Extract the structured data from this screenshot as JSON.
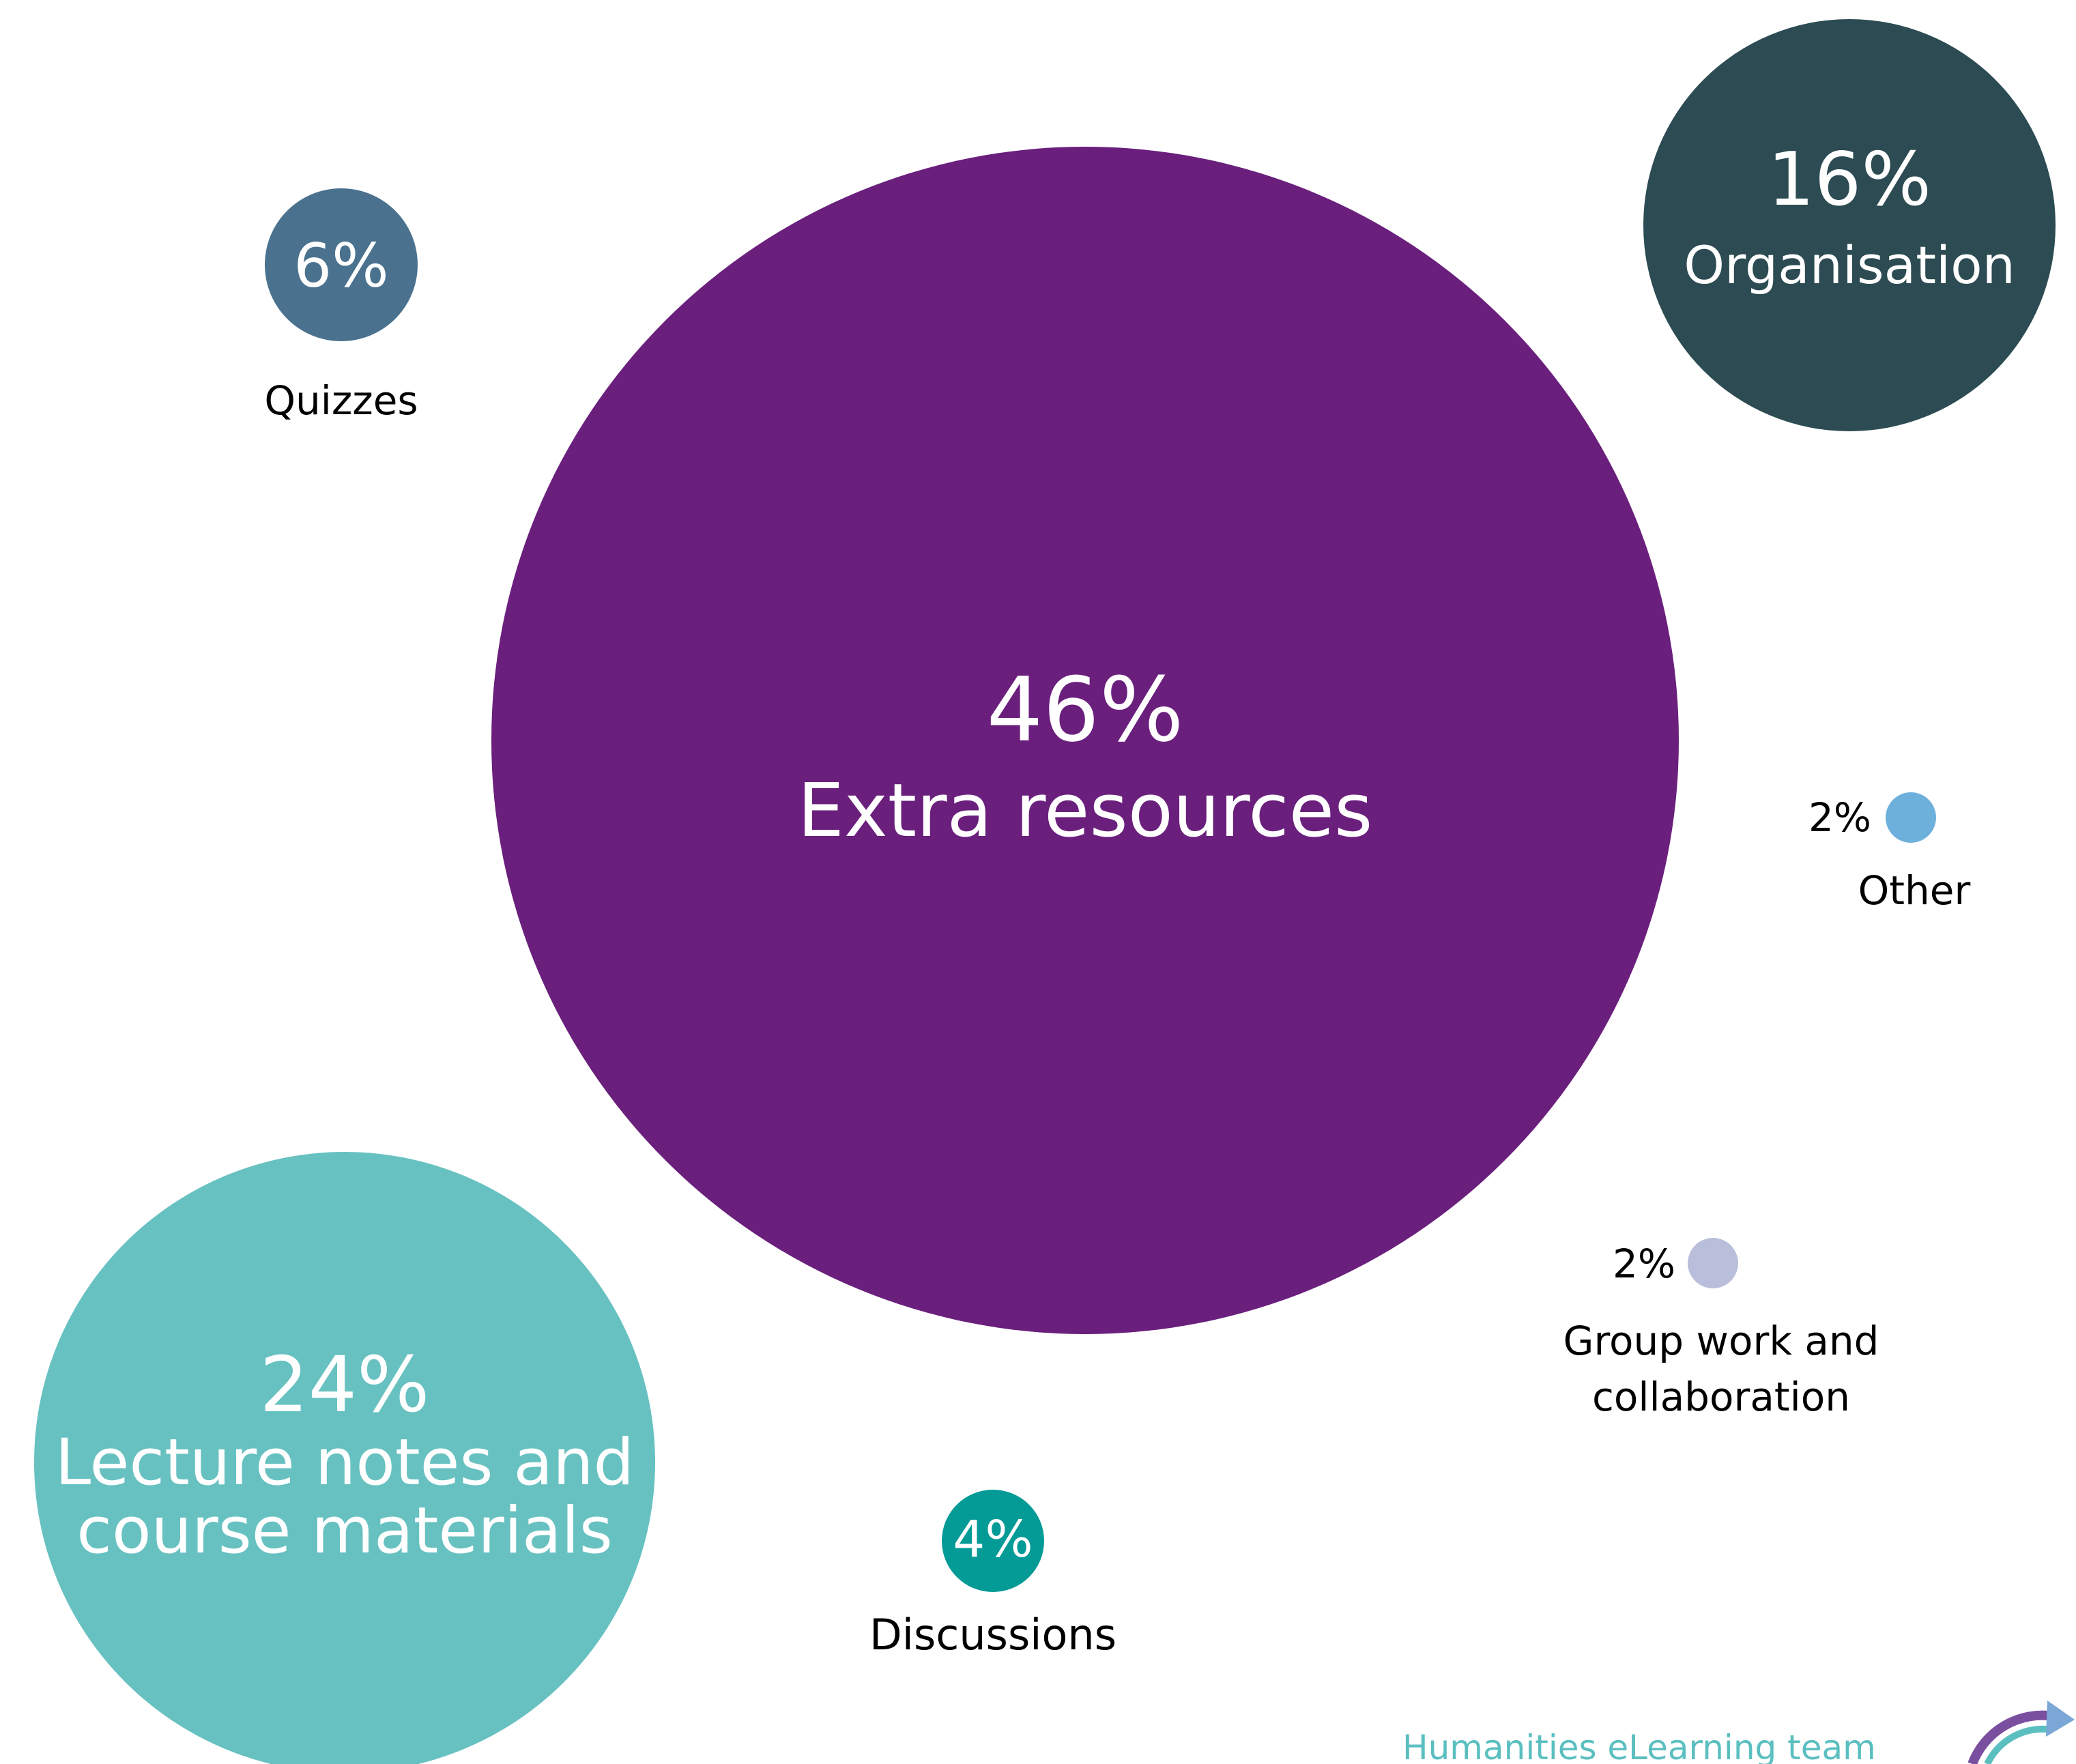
{
  "chart_data": {
    "type": "bubble",
    "series": [
      {
        "value": 46,
        "value_label": "46%",
        "name_label": "Extra resources",
        "color": "#6a1f7d",
        "label_position": "inside"
      },
      {
        "value": 24,
        "value_label": "24%",
        "name_label": "Lecture notes and course materials",
        "name_lines": [
          "Lecture notes and",
          "course materials"
        ],
        "color": "#68c1c1",
        "label_position": "inside"
      },
      {
        "value": 16,
        "value_label": "16%",
        "name_label": "Organisation",
        "color": "#2c4b52",
        "label_position": "inside"
      },
      {
        "value": 6,
        "value_label": "6%",
        "name_label": "Quizzes",
        "color": "#4a728f",
        "label_position": "value-inside-name-below"
      },
      {
        "value": 4,
        "value_label": "4%",
        "name_label": "Discussions",
        "color": "#049a96",
        "label_position": "value-inside-name-below"
      },
      {
        "value": 2,
        "value_label": "2%",
        "name_label": "Other",
        "color": "#6eb0dc",
        "label_position": "outside"
      },
      {
        "value": 2,
        "value_label": "2%",
        "name_label": "Group work and collaboration",
        "name_lines": [
          "Group work and",
          "collaboration"
        ],
        "color": "#b9bfdb",
        "label_position": "outside"
      }
    ]
  },
  "footer": {
    "text": "Humanities eLearning team",
    "logo_icon": "circular-arrow-icon",
    "color": "#5bbfc0"
  }
}
